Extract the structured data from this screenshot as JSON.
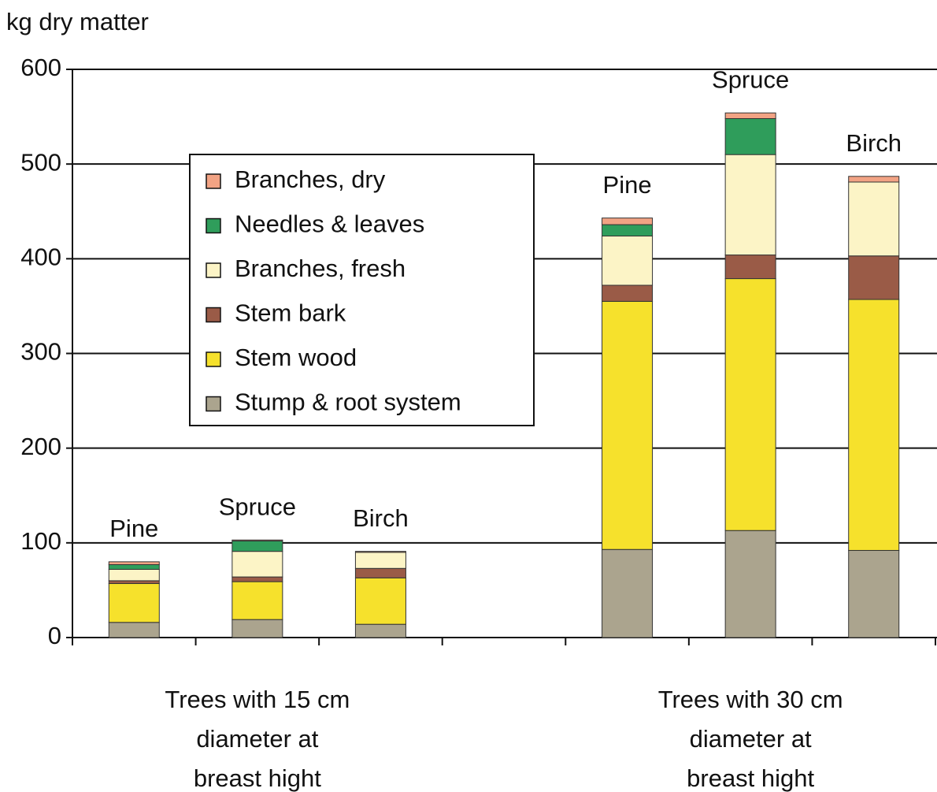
{
  "chart_data": {
    "type": "stacked_bar",
    "ylabel": "kg dry matter",
    "categories": [
      "Pine",
      "Spruce",
      "Birch",
      null,
      "Pine",
      "Spruce",
      "Birch"
    ],
    "group_labels": [
      [
        "Trees with 15 cm",
        "diameter at",
        "breast hight"
      ],
      [
        "Trees with 30 cm",
        "diameter at",
        "breast hight"
      ]
    ],
    "series": [
      {
        "name": "Stump & root system",
        "color": "#aba48e",
        "values": [
          16,
          19,
          14,
          null,
          93,
          113,
          92
        ]
      },
      {
        "name": "Stem wood",
        "color": "#f6e12c",
        "values": [
          41,
          40,
          49,
          null,
          262,
          266,
          265
        ]
      },
      {
        "name": "Stem bark",
        "color": "#9a5b47",
        "values": [
          3,
          5,
          10,
          null,
          17,
          25,
          46
        ]
      },
      {
        "name": "Branches, fresh",
        "color": "#fcf4c6",
        "values": [
          12,
          27,
          17,
          null,
          52,
          106,
          78
        ]
      },
      {
        "name": "Needles & leaves",
        "color": "#2f9d5b",
        "values": [
          5,
          11,
          0,
          null,
          12,
          38,
          0
        ]
      },
      {
        "name": "Branches, dry",
        "color": "#f2a384",
        "values": [
          3,
          1,
          1,
          null,
          7,
          6,
          6
        ]
      }
    ],
    "ylim": [
      0,
      600
    ],
    "yticks": [
      0,
      100,
      200,
      300,
      400,
      500,
      600
    ],
    "grid": true
  }
}
